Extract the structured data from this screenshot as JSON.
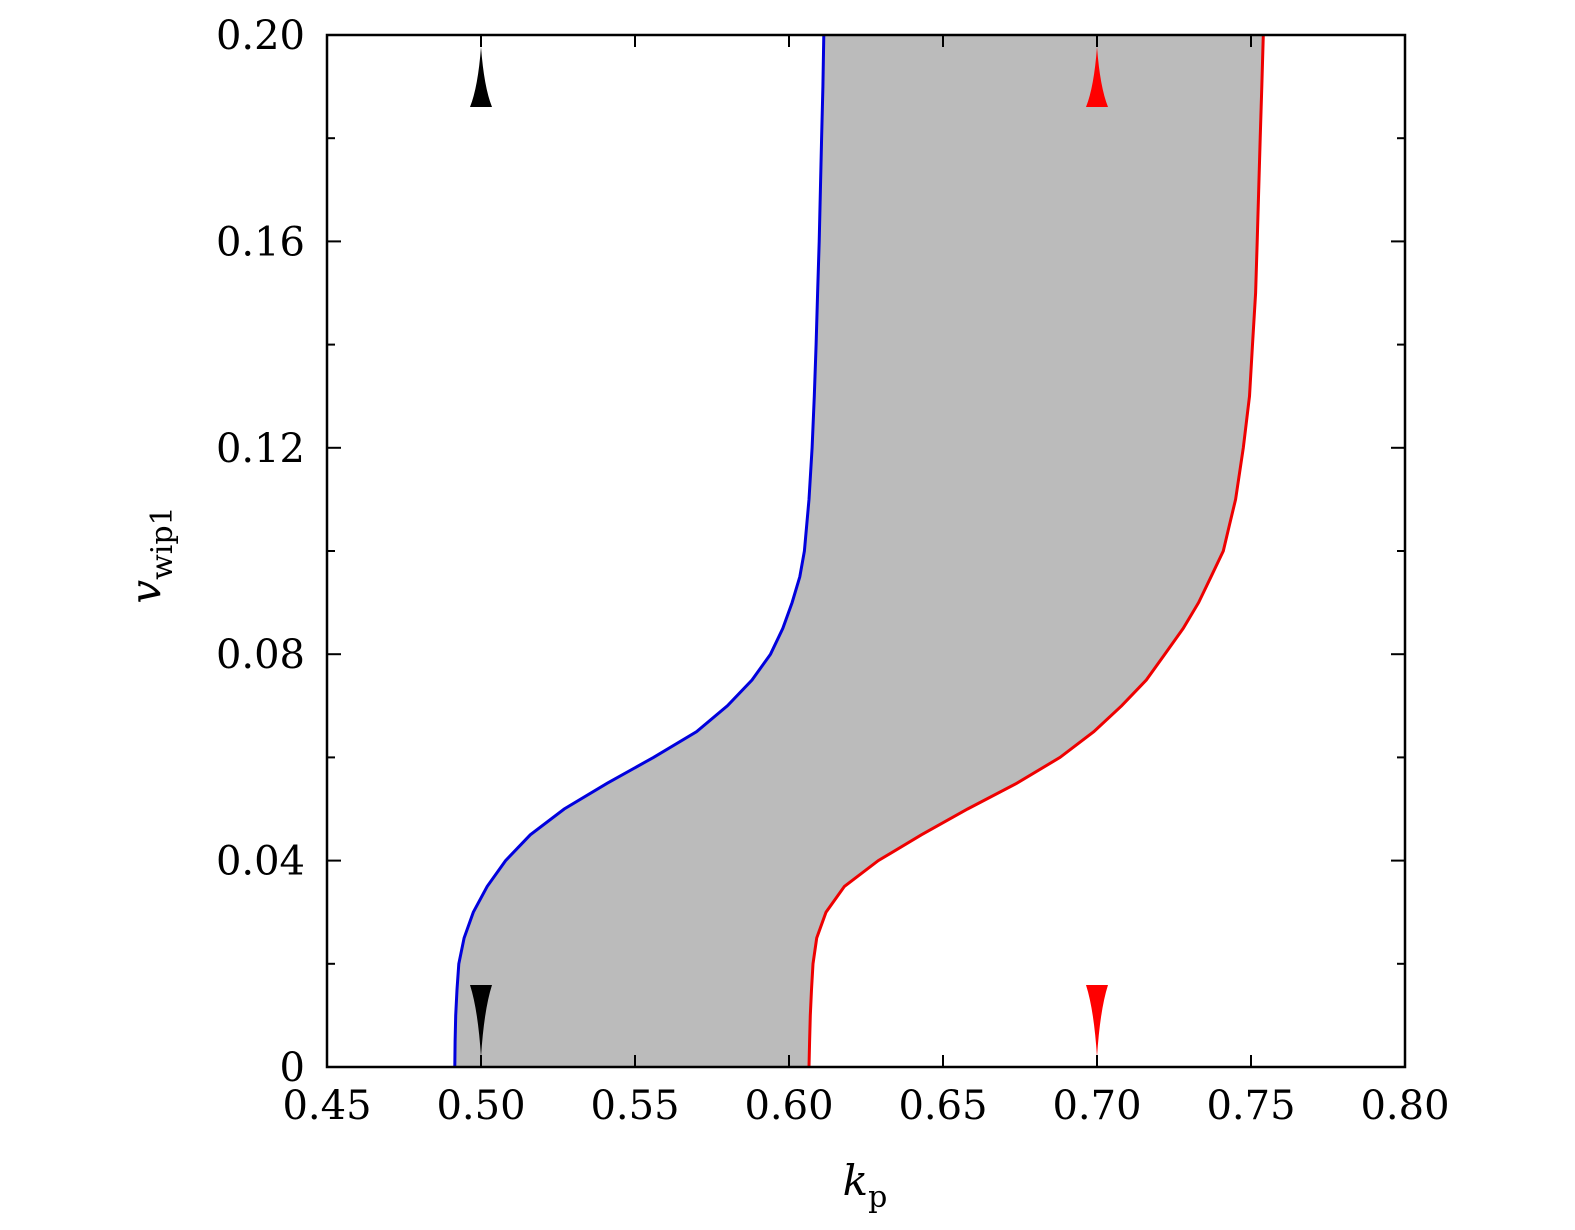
{
  "chart_data": {
    "type": "area",
    "title": "",
    "xlabel": {
      "main": "k",
      "sub": "p"
    },
    "ylabel": {
      "main": "v",
      "sub": "wip1"
    },
    "xlim": [
      0.45,
      0.8
    ],
    "ylim": [
      0,
      0.2
    ],
    "xticks": [
      0.45,
      0.5,
      0.55,
      0.6,
      0.65,
      0.7,
      0.75,
      0.8
    ],
    "xtick_labels": [
      "0.45",
      "0.50",
      "0.55",
      "0.60",
      "0.65",
      "0.70",
      "0.75",
      "0.80"
    ],
    "yticks": [
      0,
      0.04,
      0.08,
      0.12,
      0.16,
      0.2
    ],
    "ytick_labels": [
      "0",
      "0.04",
      "0.08",
      "0.12",
      "0.16",
      "0.20"
    ],
    "yminor_ticks": [
      0.02,
      0.06,
      0.1,
      0.14,
      0.18
    ],
    "grid": false,
    "colors": {
      "left_boundary": "#0000dd",
      "right_boundary": "#ee0000",
      "fill": "#bbbbbb",
      "left_marker": "#000000",
      "right_marker": "#ff0000"
    },
    "series": [
      {
        "role": "left-boundary",
        "points": [
          [
            0.4915,
            0
          ],
          [
            0.4916,
            0.005
          ],
          [
            0.4918,
            0.01
          ],
          [
            0.4922,
            0.015
          ],
          [
            0.4928,
            0.02
          ],
          [
            0.4945,
            0.025
          ],
          [
            0.4975,
            0.03
          ],
          [
            0.502,
            0.035
          ],
          [
            0.508,
            0.04
          ],
          [
            0.516,
            0.045
          ],
          [
            0.527,
            0.05
          ],
          [
            0.541,
            0.055
          ],
          [
            0.556,
            0.06
          ],
          [
            0.57,
            0.065
          ],
          [
            0.58,
            0.07
          ],
          [
            0.588,
            0.075
          ],
          [
            0.594,
            0.08
          ],
          [
            0.598,
            0.085
          ],
          [
            0.601,
            0.09
          ],
          [
            0.6035,
            0.095
          ],
          [
            0.605,
            0.1
          ],
          [
            0.6065,
            0.11
          ],
          [
            0.6075,
            0.12
          ],
          [
            0.6082,
            0.13
          ],
          [
            0.6088,
            0.14
          ],
          [
            0.6093,
            0.15
          ],
          [
            0.6098,
            0.16
          ],
          [
            0.6102,
            0.17
          ],
          [
            0.6106,
            0.18
          ],
          [
            0.611,
            0.19
          ],
          [
            0.6113,
            0.2
          ]
        ]
      },
      {
        "role": "right-boundary",
        "points": [
          [
            0.6065,
            0
          ],
          [
            0.6067,
            0.005
          ],
          [
            0.6069,
            0.01
          ],
          [
            0.6073,
            0.015
          ],
          [
            0.6078,
            0.02
          ],
          [
            0.609,
            0.025
          ],
          [
            0.612,
            0.03
          ],
          [
            0.618,
            0.035
          ],
          [
            0.629,
            0.04
          ],
          [
            0.643,
            0.045
          ],
          [
            0.658,
            0.05
          ],
          [
            0.674,
            0.055
          ],
          [
            0.688,
            0.06
          ],
          [
            0.699,
            0.065
          ],
          [
            0.708,
            0.07
          ],
          [
            0.716,
            0.075
          ],
          [
            0.722,
            0.08
          ],
          [
            0.728,
            0.085
          ],
          [
            0.733,
            0.09
          ],
          [
            0.737,
            0.095
          ],
          [
            0.741,
            0.1
          ],
          [
            0.743,
            0.105
          ],
          [
            0.745,
            0.11
          ],
          [
            0.7475,
            0.12
          ],
          [
            0.7495,
            0.13
          ],
          [
            0.7505,
            0.14
          ],
          [
            0.7515,
            0.15
          ],
          [
            0.752,
            0.16
          ],
          [
            0.7525,
            0.17
          ],
          [
            0.753,
            0.18
          ],
          [
            0.7535,
            0.19
          ],
          [
            0.754,
            0.2
          ]
        ]
      }
    ],
    "markers": [
      {
        "x": 0.5,
        "direction": "up",
        "position": "top",
        "color": "#000000"
      },
      {
        "x": 0.5,
        "direction": "down",
        "position": "bottom",
        "color": "#000000"
      },
      {
        "x": 0.7,
        "direction": "up",
        "position": "top",
        "color": "#ff0000"
      },
      {
        "x": 0.7,
        "direction": "down",
        "position": "bottom",
        "color": "#ff0000"
      }
    ]
  }
}
